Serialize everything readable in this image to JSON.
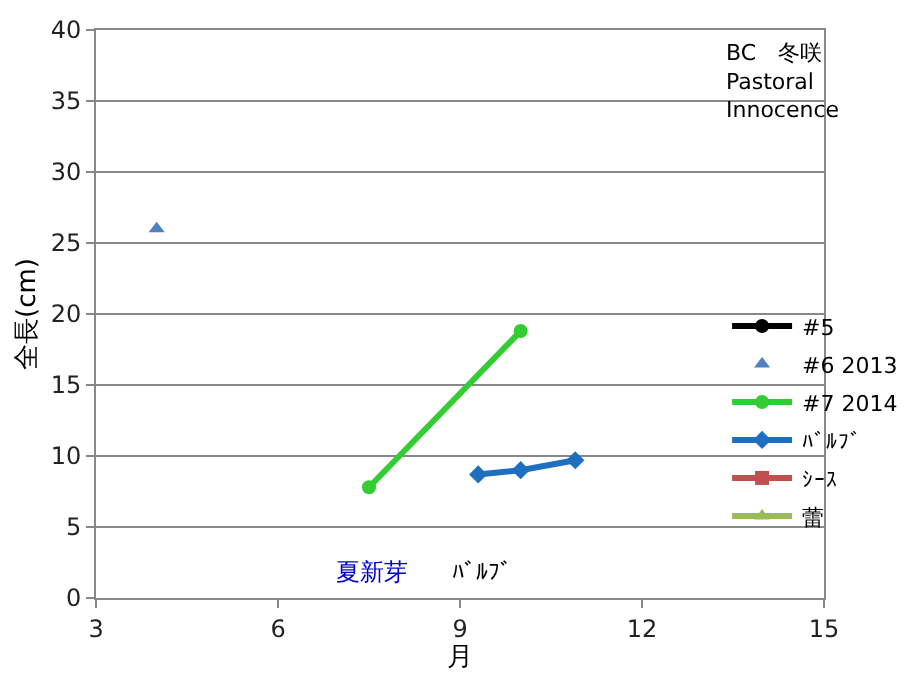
{
  "chart_data": {
    "type": "line",
    "xlabel": "月",
    "ylabel": "全長(cm)",
    "xlim": [
      3,
      15
    ],
    "xticks": [
      3,
      6,
      9,
      12,
      15
    ],
    "ylim": [
      0,
      40
    ],
    "yticks": [
      0,
      5,
      10,
      15,
      20,
      25,
      30,
      35,
      40
    ],
    "grid": "y",
    "legend": "right",
    "series": [
      {
        "name": "#5",
        "color": "#000000",
        "marker": "circle"
      },
      {
        "name": "#6 2013",
        "color": "#4f81bd",
        "marker": "triangle",
        "line_style": "none",
        "x": [
          4
        ],
        "values": [
          26
        ]
      },
      {
        "name": "#7 2014",
        "color": "#33cc33",
        "marker": "circle",
        "x": [
          7.5,
          10
        ],
        "values": [
          7.8,
          18.8
        ]
      },
      {
        "name": "ﾊﾞﾙﾌﾞ",
        "color": "#1f6fc0",
        "marker": "diamond",
        "x": [
          9.3,
          10,
          10.9
        ],
        "values": [
          8.7,
          9,
          9.7
        ]
      },
      {
        "name": "ｼｰｽ",
        "color": "#c0504d",
        "marker": "square"
      },
      {
        "name": "蕾",
        "color": "#9bbb59",
        "marker": "triangle"
      }
    ],
    "annotations": [
      "BC　冬咲\nPastoral\nInnocence",
      "夏新芽",
      "ﾊﾞﾙﾌﾞ"
    ]
  }
}
